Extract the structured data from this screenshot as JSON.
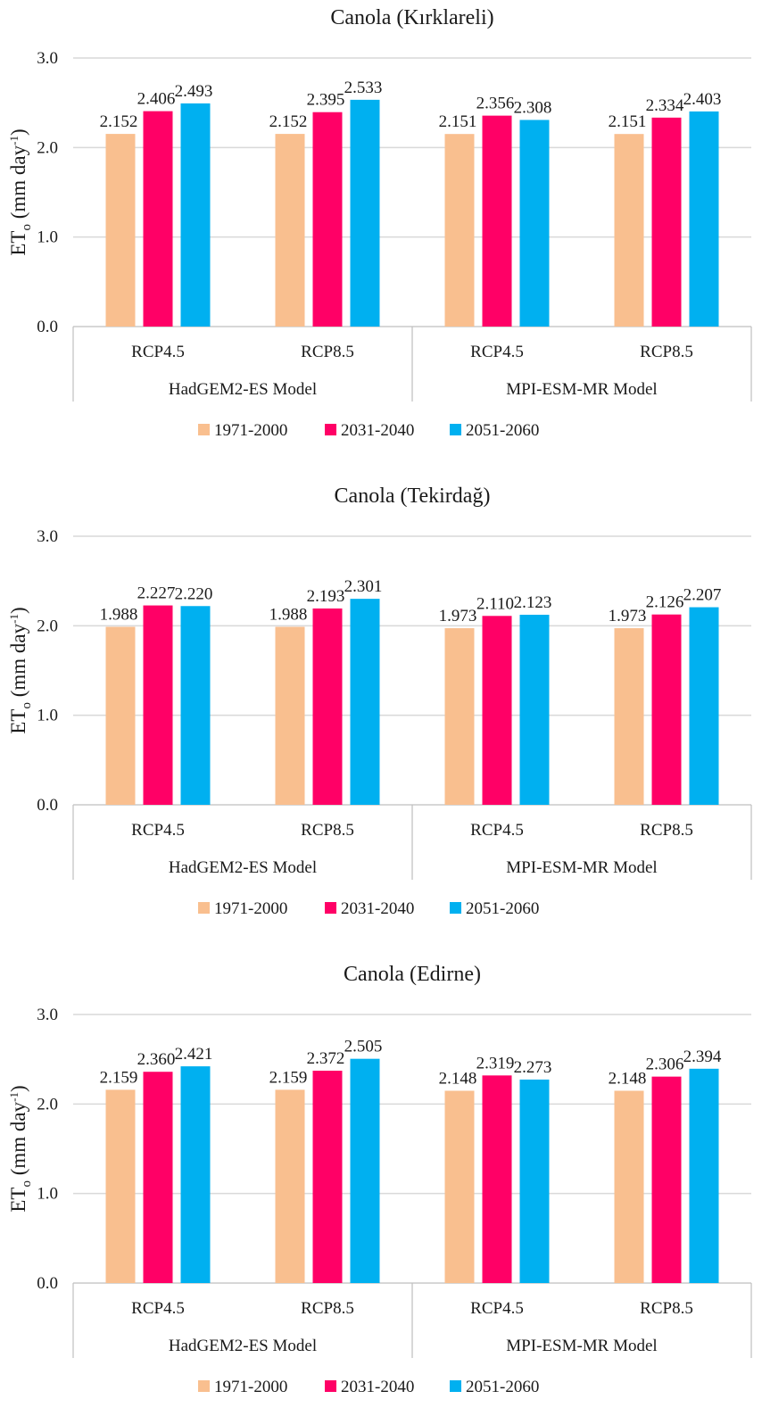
{
  "chart_data": [
    {
      "type": "bar",
      "title": "Canola (Kırklareli)",
      "ylabel": {
        "main": "ET",
        "sub": "o",
        "unit": "(mm day",
        "sup": "-1",
        "close": ")"
      },
      "ylim": [
        0,
        3
      ],
      "yticks": [
        "0.0",
        "1.0",
        "2.0",
        "3.0"
      ],
      "grid": true,
      "groups": [
        "HadGEM2-ES Model",
        "MPI-ESM-MR Model"
      ],
      "categories": [
        "RCP4.5",
        "RCP8.5",
        "RCP4.5",
        "RCP8.5"
      ],
      "series": [
        {
          "name": "1971-2000",
          "color": "#F9BF8F",
          "values": [
            2.152,
            2.152,
            2.151,
            2.151
          ],
          "labels": [
            "2.152",
            "2.152",
            "2.151",
            "2.151"
          ]
        },
        {
          "name": "2031-2040",
          "color": "#FF0066",
          "values": [
            2.406,
            2.395,
            2.356,
            2.334
          ],
          "labels": [
            "2.406",
            "2.395",
            "2.356",
            "2.334"
          ]
        },
        {
          "name": "2051-2060",
          "color": "#00B0F0",
          "values": [
            2.493,
            2.533,
            2.308,
            2.403
          ],
          "labels": [
            "2.493",
            "2.533",
            "2.308",
            "2.403"
          ]
        }
      ],
      "legend_position": "bottom"
    },
    {
      "type": "bar",
      "title": "Canola (Tekirdağ)",
      "ylabel": {
        "main": "ET",
        "sub": "o",
        "unit": "(mm day",
        "sup": "-1",
        "close": ")"
      },
      "ylim": [
        0,
        3
      ],
      "yticks": [
        "0.0",
        "1.0",
        "2.0",
        "3.0"
      ],
      "grid": true,
      "groups": [
        "HadGEM2-ES Model",
        "MPI-ESM-MR Model"
      ],
      "categories": [
        "RCP4.5",
        "RCP8.5",
        "RCP4.5",
        "RCP8.5"
      ],
      "series": [
        {
          "name": "1971-2000",
          "color": "#F9BF8F",
          "values": [
            1.988,
            1.988,
            1.973,
            1.973
          ],
          "labels": [
            "1.988",
            "1.988",
            "1.973",
            "1.973"
          ]
        },
        {
          "name": "2031-2040",
          "color": "#FF0066",
          "values": [
            2.227,
            2.193,
            2.11,
            2.126
          ],
          "labels": [
            "2.227",
            "2.193",
            "2.110",
            "2.126"
          ]
        },
        {
          "name": "2051-2060",
          "color": "#00B0F0",
          "values": [
            2.22,
            2.301,
            2.123,
            2.207
          ],
          "labels": [
            "2.220",
            "2.301",
            "2.123",
            "2.207"
          ]
        }
      ],
      "legend_position": "bottom"
    },
    {
      "type": "bar",
      "title": "Canola (Edirne)",
      "ylabel": {
        "main": "ET",
        "sub": "o",
        "unit": "(mm day",
        "sup": "-1",
        "close": ")"
      },
      "ylim": [
        0,
        3
      ],
      "yticks": [
        "0.0",
        "1.0",
        "2.0",
        "3.0"
      ],
      "grid": true,
      "groups": [
        "HadGEM2-ES Model",
        "MPI-ESM-MR Model"
      ],
      "categories": [
        "RCP4.5",
        "RCP8.5",
        "RCP4.5",
        "RCP8.5"
      ],
      "series": [
        {
          "name": "1971-2000",
          "color": "#F9BF8F",
          "values": [
            2.159,
            2.159,
            2.148,
            2.148
          ],
          "labels": [
            "2.159",
            "2.159",
            "2.148",
            "2.148"
          ]
        },
        {
          "name": "2031-2040",
          "color": "#FF0066",
          "values": [
            2.36,
            2.372,
            2.319,
            2.306
          ],
          "labels": [
            "2.360",
            "2.372",
            "2.319",
            "2.306"
          ]
        },
        {
          "name": "2051-2060",
          "color": "#00B0F0",
          "values": [
            2.421,
            2.505,
            2.273,
            2.394
          ],
          "labels": [
            "2.421",
            "2.505",
            "2.273",
            "2.394"
          ]
        }
      ],
      "legend_position": "bottom"
    }
  ]
}
